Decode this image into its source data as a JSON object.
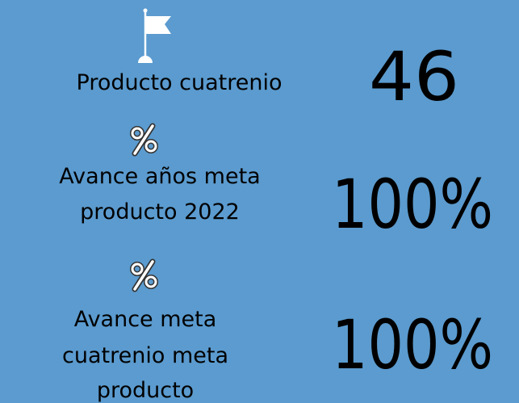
{
  "kpis": [
    {
      "label": [
        "Producto cuatrenio"
      ],
      "value": "46"
    },
    {
      "label": [
        "Avance años meta",
        "producto 2022"
      ],
      "value": "100%"
    },
    {
      "label": [
        "Avance meta",
        "cuatrenio meta",
        "producto"
      ],
      "value": "100%"
    }
  ]
}
